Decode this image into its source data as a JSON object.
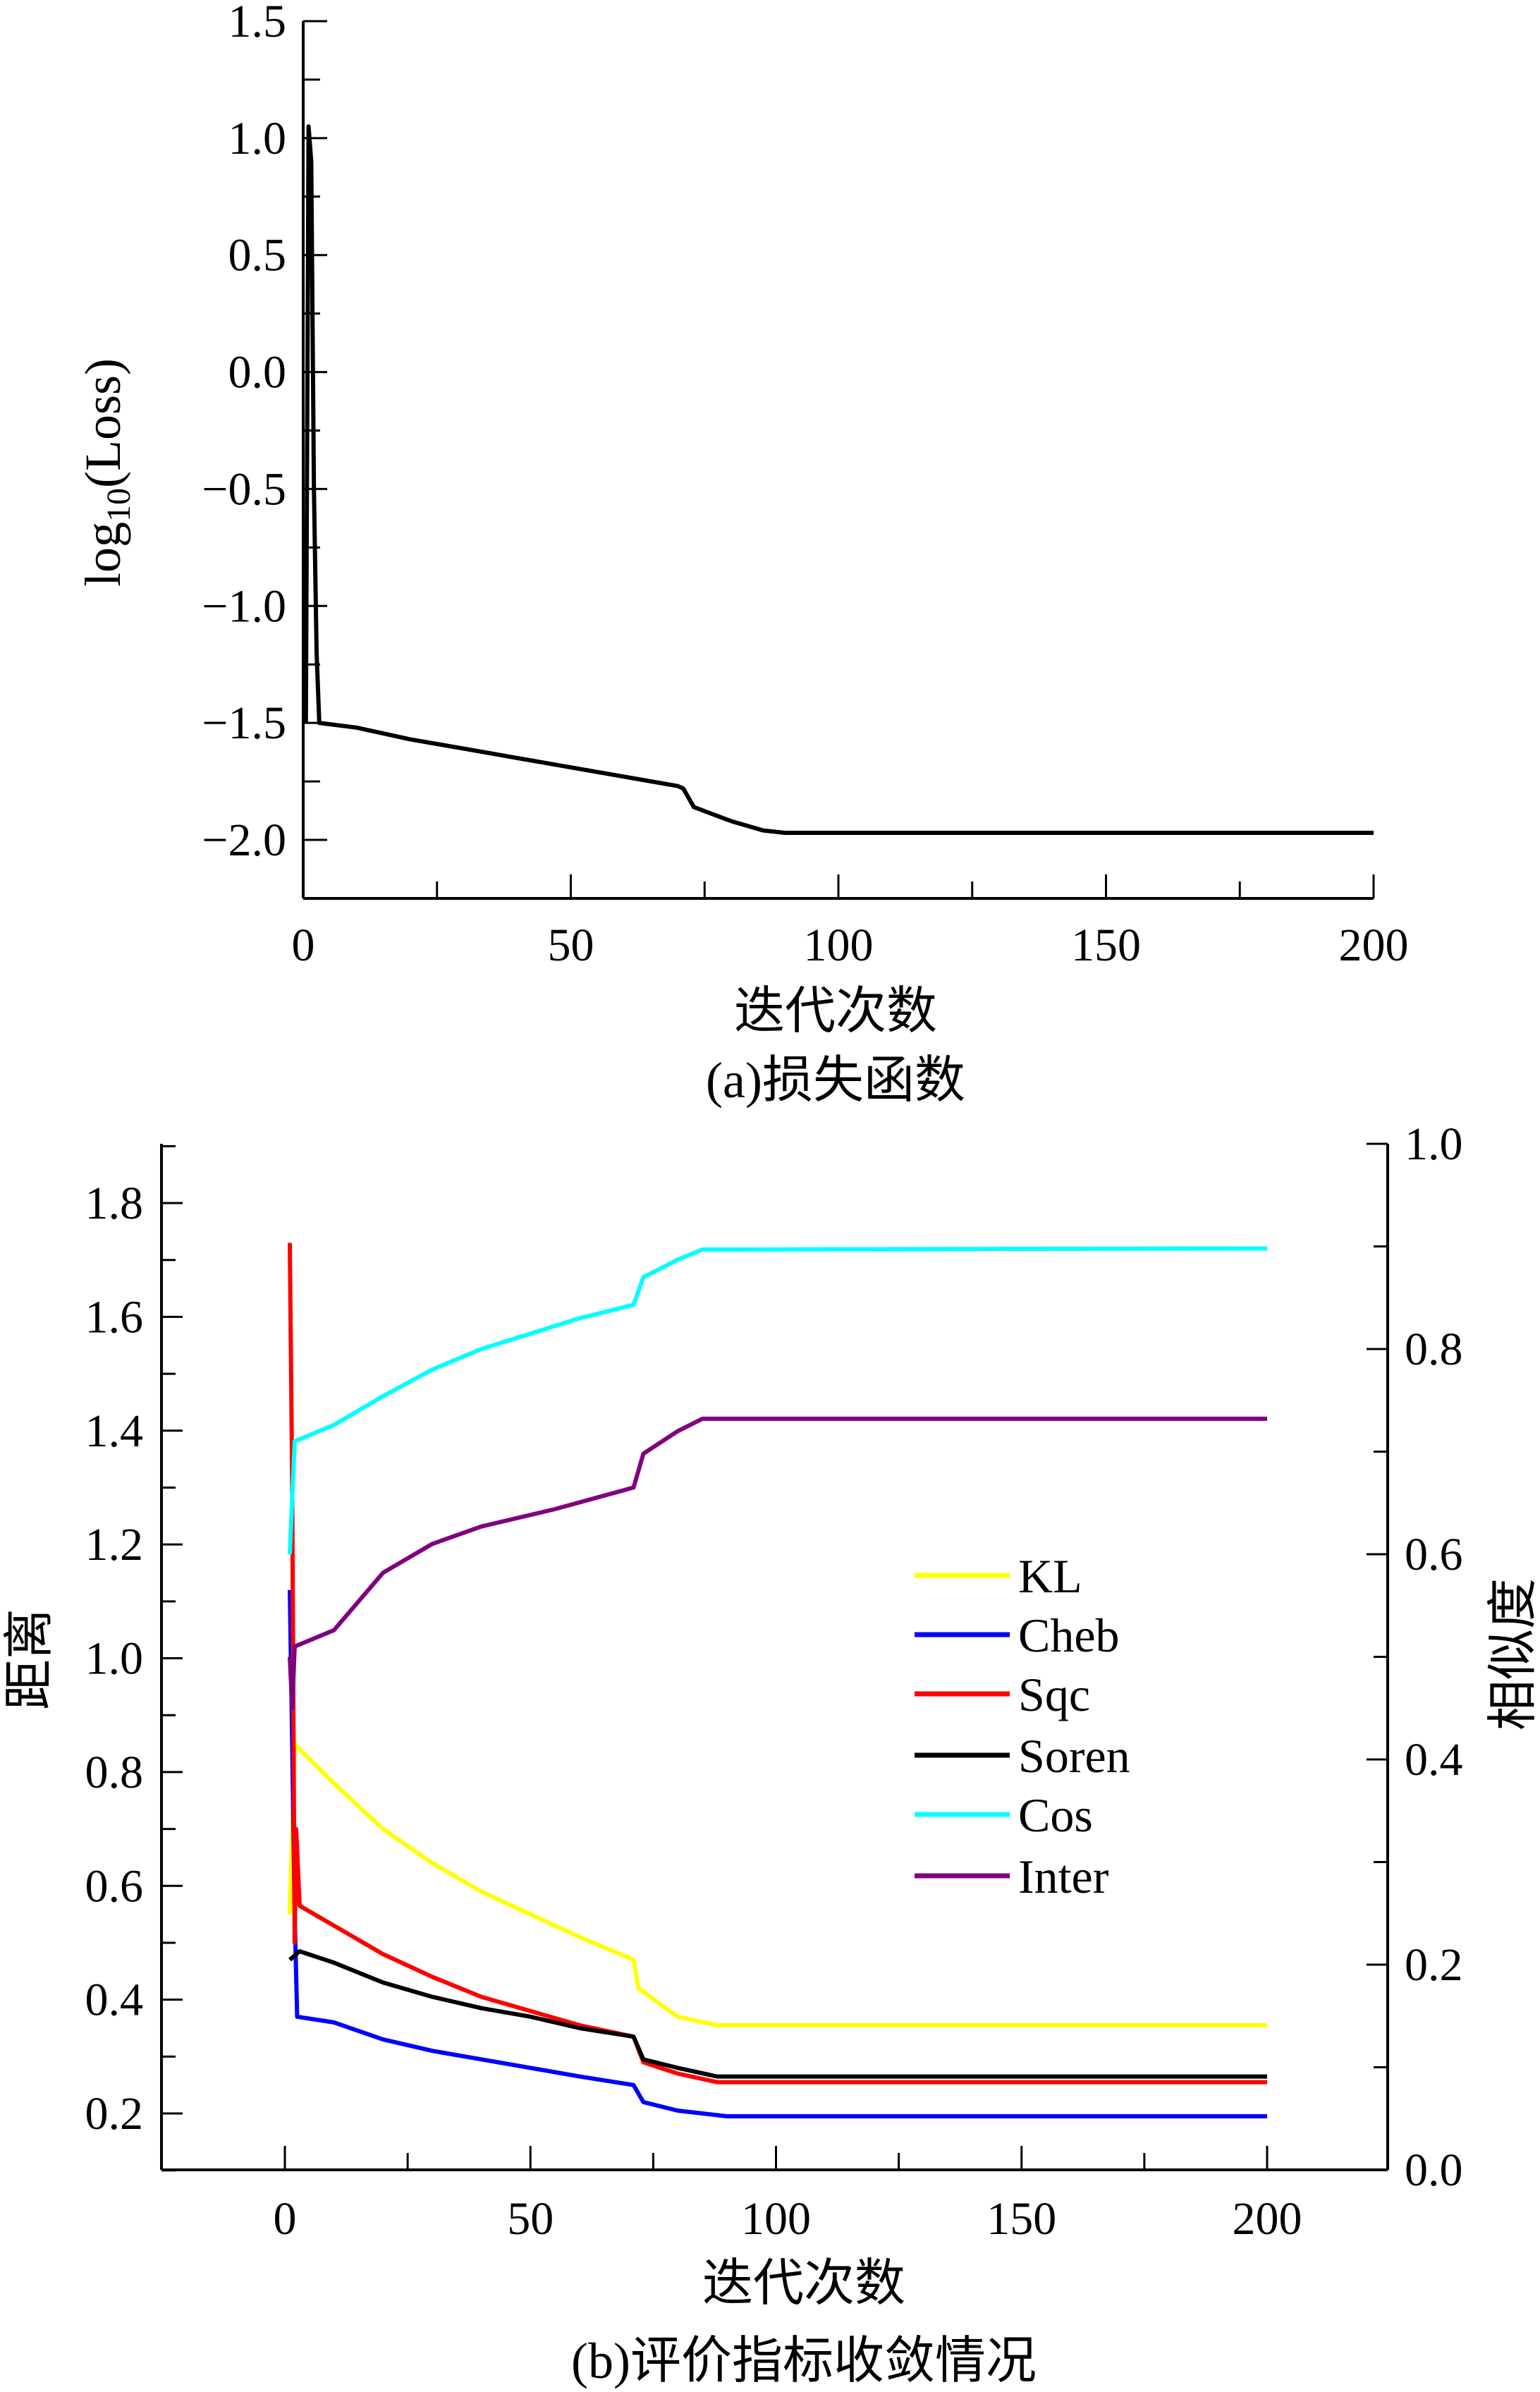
{
  "chart_data": [
    {
      "type": "line",
      "panel_caption": "(a)损失函数",
      "xlabel": "迭代次数",
      "ylabel_main": "log",
      "ylabel_sub": "10",
      "ylabel_rest": "(Loss)",
      "xlim": [
        0,
        200
      ],
      "ylim": [
        -2.25,
        1.5
      ],
      "xticks": [
        "0",
        "50",
        "100",
        "150",
        "200"
      ],
      "xtick_values": [
        0,
        50,
        100,
        150,
        200
      ],
      "yticks": [
        "1.5",
        "1.0",
        "0.5",
        "0.0",
        "−0.5",
        "−1.0",
        "−1.5",
        "−2.0"
      ],
      "ytick_values": [
        1.5,
        1.0,
        0.5,
        0.0,
        -0.5,
        -1.0,
        -1.5,
        -2.0
      ],
      "grid": false,
      "series": [
        {
          "name": "log10(Loss)",
          "color": "#000000",
          "points": [
            [
              0.5,
              -1.5
            ],
            [
              1,
              1.05
            ],
            [
              1.5,
              0.9
            ],
            [
              2,
              -0.5
            ],
            [
              2.5,
              -1.2
            ],
            [
              3,
              -1.5
            ],
            [
              10,
              -1.52
            ],
            [
              20,
              -1.57
            ],
            [
              30,
              -1.61
            ],
            [
              40,
              -1.65
            ],
            [
              50,
              -1.69
            ],
            [
              60,
              -1.73
            ],
            [
              70,
              -1.77
            ],
            [
              71,
              -1.78
            ],
            [
              73,
              -1.86
            ],
            [
              80,
              -1.92
            ],
            [
              86,
              -1.96
            ],
            [
              90,
              -1.97
            ],
            [
              100,
              -1.97
            ],
            [
              150,
              -1.97
            ],
            [
              200,
              -1.97
            ]
          ]
        }
      ]
    },
    {
      "type": "line",
      "panel_caption": "(b)评价指标收敛情况",
      "xlabel": "迭代次数",
      "ylabel_left": "距离",
      "ylabel_right": "相似度",
      "xlim": [
        -25,
        225
      ],
      "ylim_left": [
        0.1,
        1.9
      ],
      "ylim_right": [
        0.0,
        1.0
      ],
      "xticks": [
        "0",
        "50",
        "100",
        "150",
        "200"
      ],
      "xtick_values": [
        0,
        50,
        100,
        150,
        200
      ],
      "yticks_left": [
        "0.2",
        "0.4",
        "0.6",
        "0.8",
        "1.0",
        "1.2",
        "1.4",
        "1.6",
        "1.8"
      ],
      "ytick_values_left": [
        0.2,
        0.4,
        0.6,
        0.8,
        1.0,
        1.2,
        1.4,
        1.6,
        1.8
      ],
      "yticks_right": [
        "0.0",
        "0.2",
        "0.4",
        "0.6",
        "0.8",
        "1.0"
      ],
      "ytick_values_right": [
        0.0,
        0.2,
        0.4,
        0.6,
        0.8,
        1.0
      ],
      "grid": false,
      "legend_position": "center-right",
      "series": [
        {
          "name": "KL",
          "color": "#ffff00",
          "axis": "left",
          "points": [
            [
              1,
              0.55
            ],
            [
              2,
              0.85
            ],
            [
              3,
              0.84
            ],
            [
              10,
              0.78
            ],
            [
              20,
              0.7
            ],
            [
              30,
              0.64
            ],
            [
              40,
              0.59
            ],
            [
              50,
              0.55
            ],
            [
              60,
              0.51
            ],
            [
              71,
              0.47
            ],
            [
              72,
              0.42
            ],
            [
              80,
              0.37
            ],
            [
              88,
              0.355
            ],
            [
              200,
              0.355
            ]
          ]
        },
        {
          "name": "Cheb",
          "color": "#0000ff",
          "axis": "left",
          "points": [
            [
              1,
              1.12
            ],
            [
              1.5,
              0.85
            ],
            [
              2,
              0.55
            ],
            [
              2.5,
              0.37
            ],
            [
              10,
              0.36
            ],
            [
              20,
              0.33
            ],
            [
              30,
              0.31
            ],
            [
              40,
              0.295
            ],
            [
              50,
              0.28
            ],
            [
              60,
              0.265
            ],
            [
              71,
              0.25
            ],
            [
              73,
              0.22
            ],
            [
              80,
              0.205
            ],
            [
              90,
              0.195
            ],
            [
              200,
              0.195
            ]
          ]
        },
        {
          "name": "Sqc",
          "color": "#ff0000",
          "axis": "left",
          "points": [
            [
              1,
              1.73
            ],
            [
              1.5,
              1.3
            ],
            [
              2,
              0.5
            ],
            [
              2.3,
              0.7
            ],
            [
              3,
              0.565
            ],
            [
              10,
              0.53
            ],
            [
              20,
              0.48
            ],
            [
              30,
              0.44
            ],
            [
              40,
              0.405
            ],
            [
              50,
              0.38
            ],
            [
              60,
              0.355
            ],
            [
              71,
              0.335
            ],
            [
              73,
              0.29
            ],
            [
              80,
              0.27
            ],
            [
              88,
              0.255
            ],
            [
              200,
              0.255
            ]
          ]
        },
        {
          "name": "Soren",
          "color": "#000000",
          "axis": "left",
          "points": [
            [
              1,
              0.47
            ],
            [
              3,
              0.485
            ],
            [
              10,
              0.465
            ],
            [
              20,
              0.43
            ],
            [
              30,
              0.405
            ],
            [
              40,
              0.385
            ],
            [
              50,
              0.37
            ],
            [
              60,
              0.35
            ],
            [
              71,
              0.335
            ],
            [
              73,
              0.295
            ],
            [
              80,
              0.28
            ],
            [
              88,
              0.265
            ],
            [
              200,
              0.265
            ]
          ]
        },
        {
          "name": "Cos",
          "color": "#00ffff",
          "axis": "right",
          "points": [
            [
              1,
              0.6
            ],
            [
              2,
              0.71
            ],
            [
              10,
              0.726
            ],
            [
              20,
              0.754
            ],
            [
              30,
              0.78
            ],
            [
              40,
              0.8
            ],
            [
              50,
              0.815
            ],
            [
              60,
              0.83
            ],
            [
              71,
              0.843
            ],
            [
              73,
              0.87
            ],
            [
              80,
              0.887
            ],
            [
              85,
              0.897
            ],
            [
              200,
              0.898
            ]
          ]
        },
        {
          "name": "Inter",
          "color": "#800080",
          "axis": "right",
          "points": [
            [
              1,
              0.5
            ],
            [
              1.5,
              0.45
            ],
            [
              2,
              0.51
            ],
            [
              10,
              0.526
            ],
            [
              20,
              0.582
            ],
            [
              30,
              0.61
            ],
            [
              40,
              0.627
            ],
            [
              55,
              0.644
            ],
            [
              71,
              0.665
            ],
            [
              73,
              0.698
            ],
            [
              80,
              0.72
            ],
            [
              85,
              0.732
            ],
            [
              200,
              0.732
            ]
          ]
        }
      ]
    }
  ]
}
